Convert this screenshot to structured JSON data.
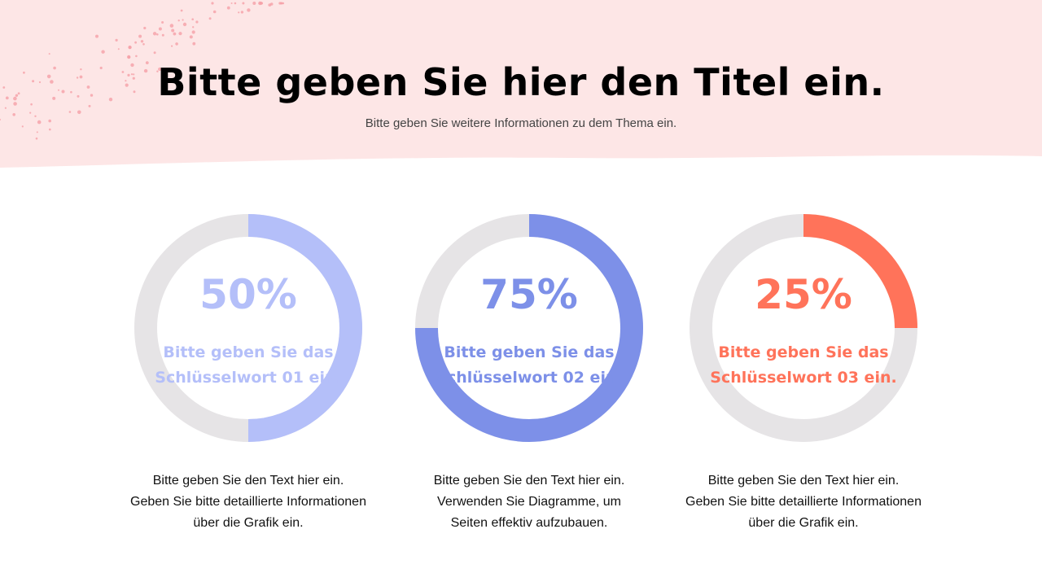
{
  "header": {
    "title": "Bitte geben Sie hier den Titel ein.",
    "subtitle": "Bitte geben Sie weitere Informationen zu dem Thema ein.",
    "background_color": "#fde6e6",
    "dot_color": "#f5a0a8"
  },
  "chart_data": [
    {
      "type": "pie",
      "variant": "progress-ring",
      "value": 50,
      "label": "50%",
      "keyword": [
        "Bitte geben Sie das",
        "Schlüsselwort 01 ein."
      ],
      "color": "#b4bff9",
      "track_color": "#e6e4e6",
      "description": [
        "Bitte geben Sie den Text hier ein.",
        "Geben Sie bitte detaillierte Informationen",
        "über die Grafik ein."
      ]
    },
    {
      "type": "pie",
      "variant": "progress-ring",
      "value": 75,
      "label": "75%",
      "keyword": [
        "Bitte geben Sie das",
        "Schlüsselwort 02 ein."
      ],
      "color": "#7d90e8",
      "track_color": "#e6e4e6",
      "description": [
        "Bitte geben Sie den Text hier ein.",
        "Verwenden Sie Diagramme, um",
        "Seiten effektiv aufzubauen."
      ]
    },
    {
      "type": "pie",
      "variant": "progress-ring",
      "value": 25,
      "label": "25%",
      "keyword": [
        "Bitte geben Sie das",
        "Schlüsselwort 03 ein."
      ],
      "color": "#ff735a",
      "track_color": "#e6e4e6",
      "description": [
        "Bitte geben Sie den Text hier ein.",
        "Geben Sie bitte detaillierte Informationen",
        "über die Grafik ein."
      ]
    }
  ]
}
